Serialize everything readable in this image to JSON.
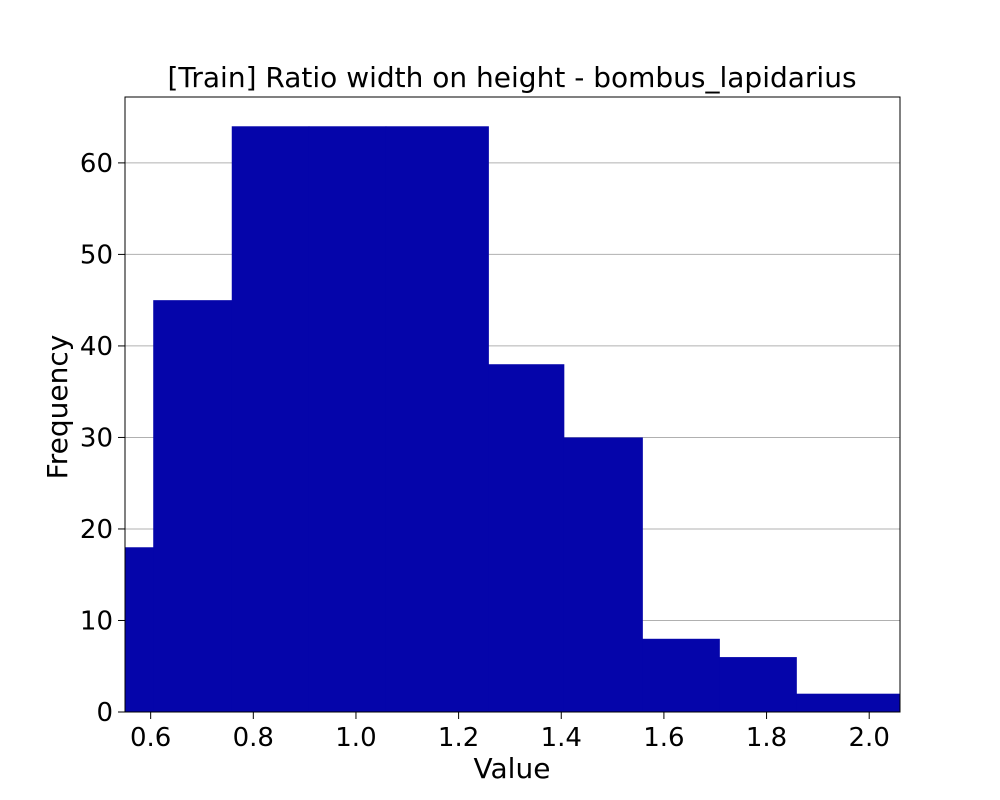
{
  "chart_data": {
    "type": "bar",
    "title": "[Train] Ratio width on height - bombus_lapidarius",
    "xlabel": "Value",
    "ylabel": "Frequency",
    "bin_edges": [
      0.55,
      0.605,
      0.758,
      0.908,
      1.058,
      1.258,
      1.405,
      1.558,
      1.708,
      1.858,
      2.06
    ],
    "values": [
      18,
      45,
      64,
      64,
      64,
      38,
      30,
      8,
      6,
      2
    ],
    "xlim": [
      0.55,
      2.06
    ],
    "ylim": [
      0,
      67.2
    ],
    "x_ticks": [
      "0.6",
      "0.8",
      "1.0",
      "1.2",
      "1.4",
      "1.6",
      "1.8",
      "2.0"
    ],
    "y_ticks": [
      "0",
      "10",
      "20",
      "30",
      "40",
      "50",
      "60"
    ],
    "grid": "horizontal",
    "bar_color": "#0505aa"
  }
}
